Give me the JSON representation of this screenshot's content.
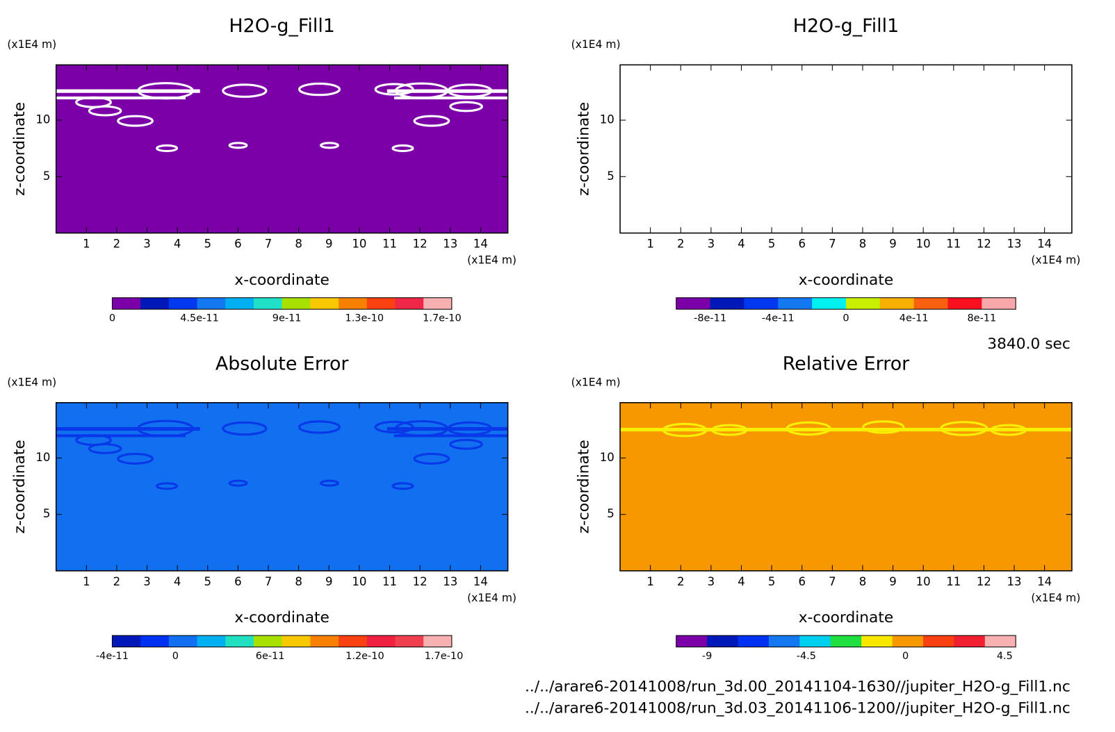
{
  "chart_data": [
    {
      "type": "contour",
      "title": "H2O-g_Fill1",
      "xlabel": "x-coordinate",
      "ylabel": "z-coordinate",
      "xunit": "(x1E4 m)",
      "yunit": "(x1E4 m)",
      "xlim": [
        0,
        14.9
      ],
      "ylim": [
        0,
        14.9
      ],
      "xticks": [
        1,
        2,
        3,
        4,
        5,
        6,
        7,
        8,
        9,
        10,
        11,
        12,
        13,
        14
      ],
      "yticks": [
        5,
        10
      ],
      "background": "#7b00a8",
      "contour_color": "#ffffff",
      "features": "cloud",
      "colorbar": {
        "clim": [
          0,
          1.75e-10
        ],
        "ticks": [
          0,
          4.5e-11,
          9e-11,
          1.3e-10,
          1.7e-10
        ],
        "colors": [
          "#7b00a8",
          "#0018b8",
          "#0038f0",
          "#1478f0",
          "#00b0f0",
          "#20e0c8",
          "#a8e000",
          "#f8c800",
          "#f88000",
          "#f84010",
          "#f02848",
          "#f8b0b0"
        ]
      }
    },
    {
      "type": "contour",
      "title": "H2O-g_Fill1",
      "xlabel": "x-coordinate",
      "ylabel": "z-coordinate",
      "xunit": "(x1E4 m)",
      "yunit": "(x1E4 m)",
      "xlim": [
        0,
        14.9
      ],
      "ylim": [
        0,
        14.9
      ],
      "xticks": [
        1,
        2,
        3,
        4,
        5,
        6,
        7,
        8,
        9,
        10,
        11,
        12,
        13,
        14
      ],
      "yticks": [
        5,
        10
      ],
      "background": "#ffffff",
      "contour_color": "#ffffff",
      "features": "none",
      "colorbar": {
        "clim": [
          -1e-10,
          1e-10
        ],
        "ticks": [
          -8e-11,
          -4e-11,
          0,
          4e-11,
          8e-11
        ],
        "colors": [
          "#7b00a8",
          "#0018b8",
          "#0038f0",
          "#1478f0",
          "#00f0f0",
          "#c8f000",
          "#f8b000",
          "#f86010",
          "#f81020",
          "#f8a8a8"
        ]
      }
    },
    {
      "type": "contour",
      "title": "Absolute Error",
      "xlabel": "x-coordinate",
      "ylabel": "z-coordinate",
      "xunit": "(x1E4 m)",
      "yunit": "(x1E4 m)",
      "xlim": [
        0,
        14.9
      ],
      "ylim": [
        0,
        14.9
      ],
      "xticks": [
        1,
        2,
        3,
        4,
        5,
        6,
        7,
        8,
        9,
        10,
        11,
        12,
        13,
        14
      ],
      "yticks": [
        5,
        10
      ],
      "background": "#1070f0",
      "contour_color": "#0838e8",
      "features": "cloud",
      "colorbar": {
        "clim": [
          -4e-11,
          1.75e-10
        ],
        "ticks": [
          -4e-11,
          0,
          6e-11,
          1.2e-10,
          1.7e-10
        ],
        "colors": [
          "#0018b8",
          "#0030f0",
          "#1070f0",
          "#00b0f0",
          "#20e0c0",
          "#a8e000",
          "#f8c800",
          "#f88000",
          "#f84010",
          "#f02040",
          "#f04050",
          "#f8b0b0"
        ]
      }
    },
    {
      "type": "contour",
      "title": "Relative Error",
      "xlabel": "x-coordinate",
      "ylabel": "z-coordinate",
      "xunit": "(x1E4 m)",
      "yunit": "(x1E4 m)",
      "xlim": [
        0,
        14.9
      ],
      "ylim": [
        0,
        14.9
      ],
      "xticks": [
        1,
        2,
        3,
        4,
        5,
        6,
        7,
        8,
        9,
        10,
        11,
        12,
        13,
        14
      ],
      "yticks": [
        5,
        10
      ],
      "background": "#f89800",
      "contour_color": "#f8f000",
      "features": "band",
      "colorbar": {
        "clim": [
          -10.4,
          5
        ],
        "ticks": [
          -9,
          -4.5,
          0,
          4.5
        ],
        "colors": [
          "#7b00a8",
          "#0018b8",
          "#0030f0",
          "#1478f0",
          "#00d0f0",
          "#20e040",
          "#f8e800",
          "#f89800",
          "#f84010",
          "#f02030",
          "#f8b0b0"
        ]
      }
    }
  ],
  "time": "3840.0 sec",
  "files": [
    "../../arare6-20141008/run_3d.00_20141104-1630//jupiter_H2O-g_Fill1.nc",
    "../../arare6-20141008/run_3d.03_20141106-1200//jupiter_H2O-g_Fill1.nc"
  ]
}
